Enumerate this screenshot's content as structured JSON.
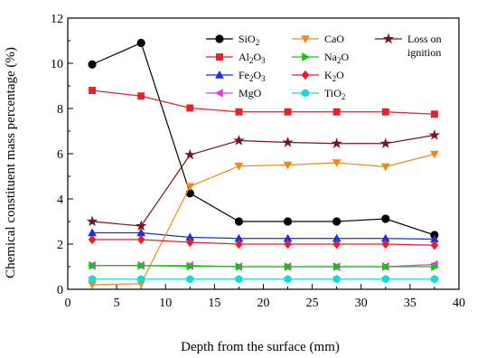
{
  "chart_data": {
    "type": "line",
    "xlabel": "Depth from the surface (mm)",
    "ylabel": "Chemical constituent mass percentage (%)",
    "xlim": [
      0,
      40
    ],
    "ylim": [
      0,
      12
    ],
    "xticks": [
      0,
      5,
      10,
      15,
      20,
      25,
      30,
      35,
      40
    ],
    "yticks": [
      0,
      2,
      4,
      6,
      8,
      10,
      12
    ],
    "xtick_labels": [
      "0",
      "5",
      "10",
      "15",
      "20",
      "25",
      "30",
      "35",
      "40"
    ],
    "ytick_labels": [
      "0",
      "2",
      "4",
      "6",
      "8",
      "10",
      "12"
    ],
    "grid": false,
    "legend_position": "top-right",
    "x": [
      2.5,
      7.5,
      12.5,
      17.5,
      22.5,
      27.5,
      32.5,
      37.5
    ],
    "series": [
      {
        "name": "SiO2",
        "label_main": "SiO",
        "label_sub": "2",
        "label_tail": "",
        "color": "#000000",
        "marker": "circle",
        "values": [
          9.95,
          10.9,
          4.25,
          3.0,
          3.0,
          3.0,
          3.12,
          2.4
        ]
      },
      {
        "name": "Al2O3",
        "label_main": "Al",
        "label_sub": "2",
        "label_tail": "O3",
        "color": "#e8202a",
        "marker": "square",
        "values": [
          8.8,
          8.55,
          8.02,
          7.85,
          7.85,
          7.85,
          7.85,
          7.75
        ]
      },
      {
        "name": "Fe2O3",
        "label_main": "Fe",
        "label_sub": "2",
        "label_tail": "O3",
        "color": "#1a2fe0",
        "marker": "triangle-up",
        "values": [
          2.5,
          2.5,
          2.3,
          2.25,
          2.25,
          2.25,
          2.25,
          2.22
        ]
      },
      {
        "name": "MgO",
        "label_main": "MgO",
        "label_sub": "",
        "label_tail": "",
        "color": "#e040e0",
        "marker": "triangle-left",
        "values": [
          1.05,
          1.05,
          1.05,
          1.0,
          1.0,
          1.0,
          1.0,
          1.1
        ]
      },
      {
        "name": "CaO",
        "label_main": "CaO",
        "label_sub": "",
        "label_tail": "",
        "color": "#f08a1c",
        "marker": "triangle-down",
        "values": [
          0.2,
          0.25,
          4.55,
          5.45,
          5.5,
          5.6,
          5.42,
          5.98
        ]
      },
      {
        "name": "Na2O",
        "label_main": "Na",
        "label_sub": "2",
        "label_tail": "O",
        "color": "#18c018",
        "marker": "triangle-right",
        "values": [
          1.05,
          1.05,
          1.02,
          1.0,
          1.0,
          1.0,
          1.0,
          1.0
        ]
      },
      {
        "name": "K2O",
        "label_main": "K",
        "label_sub": "2",
        "label_tail": "O",
        "color": "#e8202a",
        "marker": "diamond",
        "values": [
          2.2,
          2.2,
          2.08,
          2.0,
          2.0,
          2.0,
          2.0,
          1.95
        ]
      },
      {
        "name": "TiO2",
        "label_main": "TiO",
        "label_sub": "2",
        "label_tail": "",
        "color": "#18d8d8",
        "marker": "hexagon",
        "values": [
          0.45,
          0.45,
          0.45,
          0.45,
          0.45,
          0.45,
          0.45,
          0.45
        ]
      },
      {
        "name": "Loss on ignition",
        "label_main": "Loss on",
        "label_sub": "",
        "label_tail": "",
        "label_line2": "ignition",
        "color": "#7a1520",
        "marker": "star",
        "values": [
          3.0,
          2.8,
          5.95,
          6.58,
          6.5,
          6.45,
          6.45,
          6.82
        ]
      }
    ]
  }
}
